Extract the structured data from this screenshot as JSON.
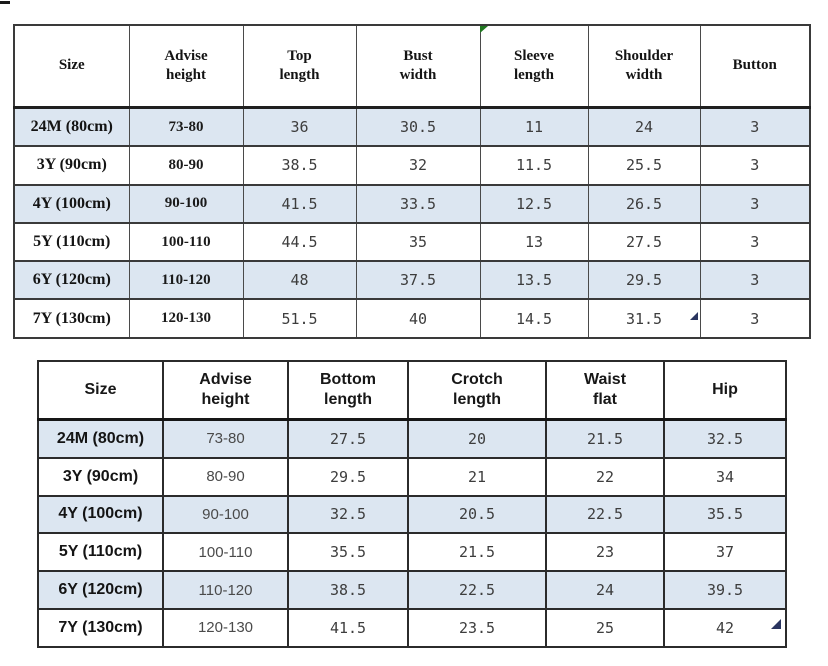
{
  "colors": {
    "band_row": "#dce6f1",
    "table1_border": "#3a3a3a",
    "table2_border": "#242424",
    "header_text": "#141414",
    "value_text": "#3d3d3d",
    "comment_marker_green": "#217821",
    "corner_marker_navy": "#2a3560"
  },
  "chart_data": [
    {
      "type": "table",
      "name": "top-garment-size-table",
      "columns": [
        "Size",
        "Advise height",
        "Top length",
        "Bust width",
        "Sleeve length",
        "Shoulder width",
        "Button"
      ],
      "rows": [
        [
          "24M (80cm)",
          "73-80",
          "36",
          "30.5",
          "11",
          "24",
          "3"
        ],
        [
          "3Y (90cm)",
          "80-90",
          "38.5",
          "32",
          "11.5",
          "25.5",
          "3"
        ],
        [
          "4Y (100cm)",
          "90-100",
          "41.5",
          "33.5",
          "12.5",
          "26.5",
          "3"
        ],
        [
          "5Y (110cm)",
          "100-110",
          "44.5",
          "35",
          "13",
          "27.5",
          "3"
        ],
        [
          "6Y (120cm)",
          "110-120",
          "48",
          "37.5",
          "13.5",
          "29.5",
          "3"
        ],
        [
          "7Y (130cm)",
          "120-130",
          "51.5",
          "40",
          "14.5",
          "31.5",
          "3"
        ]
      ],
      "layout_hints": {
        "banded_rows": true,
        "shaded_rows": [
          1,
          3,
          5
        ],
        "header_two_line_wrap": true
      }
    },
    {
      "type": "table",
      "name": "bottom-pants-size-table",
      "columns": [
        "Size",
        "Advise height",
        "Bottom length",
        "Crotch length",
        "Waist flat",
        "Hip"
      ],
      "rows": [
        [
          "24M (80cm)",
          "73-80",
          "27.5",
          "20",
          "21.5",
          "32.5"
        ],
        [
          "3Y (90cm)",
          "80-90",
          "29.5",
          "21",
          "22",
          "34"
        ],
        [
          "4Y (100cm)",
          "90-100",
          "32.5",
          "20.5",
          "22.5",
          "35.5"
        ],
        [
          "5Y (110cm)",
          "100-110",
          "35.5",
          "21.5",
          "23",
          "37"
        ],
        [
          "6Y (120cm)",
          "110-120",
          "38.5",
          "22.5",
          "24",
          "39.5"
        ],
        [
          "7Y (130cm)",
          "120-130",
          "41.5",
          "23.5",
          "25",
          "42"
        ]
      ],
      "layout_hints": {
        "banded_rows": true,
        "shaded_rows": [
          1,
          3,
          5
        ],
        "header_two_line_wrap": true
      }
    }
  ],
  "artifacts": {
    "comment_marker": {
      "icon": "comment-marker-icon",
      "color": "#217821",
      "attached_to": "Sleeve length column header"
    },
    "corner_marker_top_table": {
      "icon": "corner-triangle-icon",
      "color": "#2a3560"
    },
    "corner_marker_bottom_table": {
      "icon": "corner-triangle-icon",
      "color": "#2a3560"
    }
  }
}
